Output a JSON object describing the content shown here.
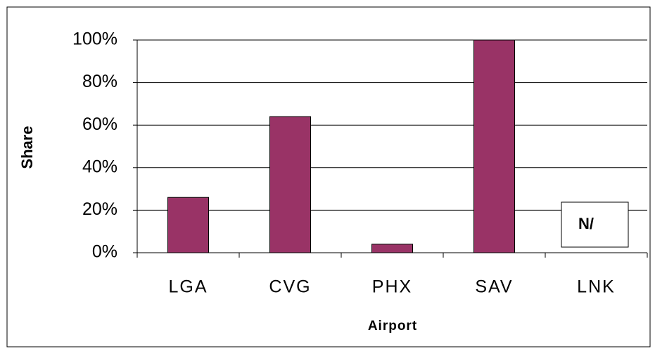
{
  "chart_data": {
    "type": "bar",
    "x_label": "Airport",
    "y_label": "Share",
    "categories": [
      "LGA",
      "CVG",
      "PHX",
      "SAV",
      "LNK"
    ],
    "values": [
      26,
      64,
      4,
      100,
      null
    ],
    "color": "#993366",
    "ylim": [
      0,
      100
    ],
    "yticks": [
      {
        "value": 0,
        "label": "0%"
      },
      {
        "value": 20,
        "label": "20%"
      },
      {
        "value": 40,
        "label": "40%"
      },
      {
        "value": 60,
        "label": "60%"
      },
      {
        "value": 80,
        "label": "80%"
      },
      {
        "value": 100,
        "label": "100%"
      }
    ],
    "grid": true,
    "annotation": "N/"
  }
}
